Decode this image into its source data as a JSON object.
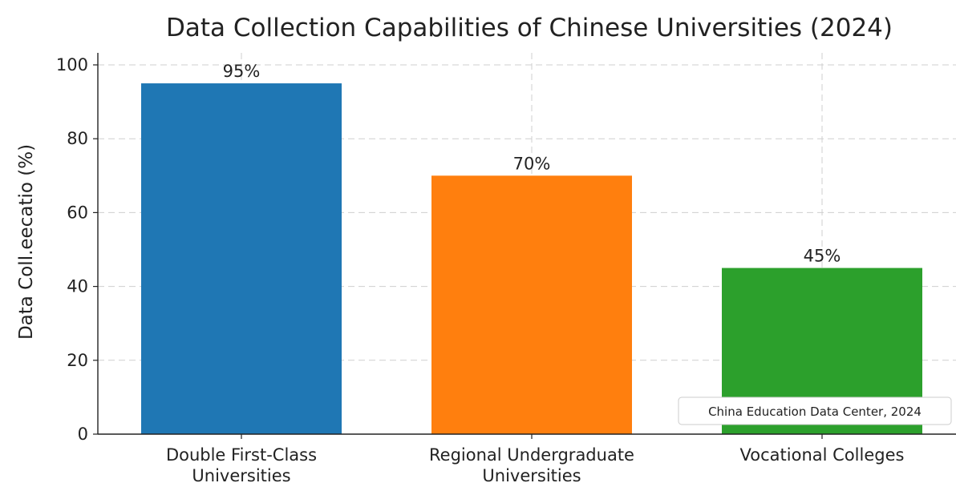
{
  "chart_data": {
    "type": "bar",
    "title": "Data Collection Capabilities of Chinese Universities (2024)",
    "xlabel": "",
    "ylabel": "Data Coll.eecatio (%)",
    "categories": [
      [
        "Double First-Class",
        "Universities"
      ],
      [
        "Regional Undergraduate",
        "Universities"
      ],
      [
        "Vocational Colleges"
      ]
    ],
    "values": [
      95,
      70,
      45
    ],
    "data_labels": [
      "95%",
      "70%",
      "45%"
    ],
    "colors": [
      "#1f77b4",
      "#ff7f0e",
      "#2ca02c"
    ],
    "ylim": [
      0,
      100
    ],
    "yticks": [
      0,
      20,
      40,
      60,
      80,
      100
    ],
    "ytick_labels": [
      "0",
      "20",
      "40",
      "60",
      "80",
      "100"
    ],
    "grid": true,
    "annotation": "China Education Data Center, 2024",
    "annotation_placement": "bottom-right"
  }
}
